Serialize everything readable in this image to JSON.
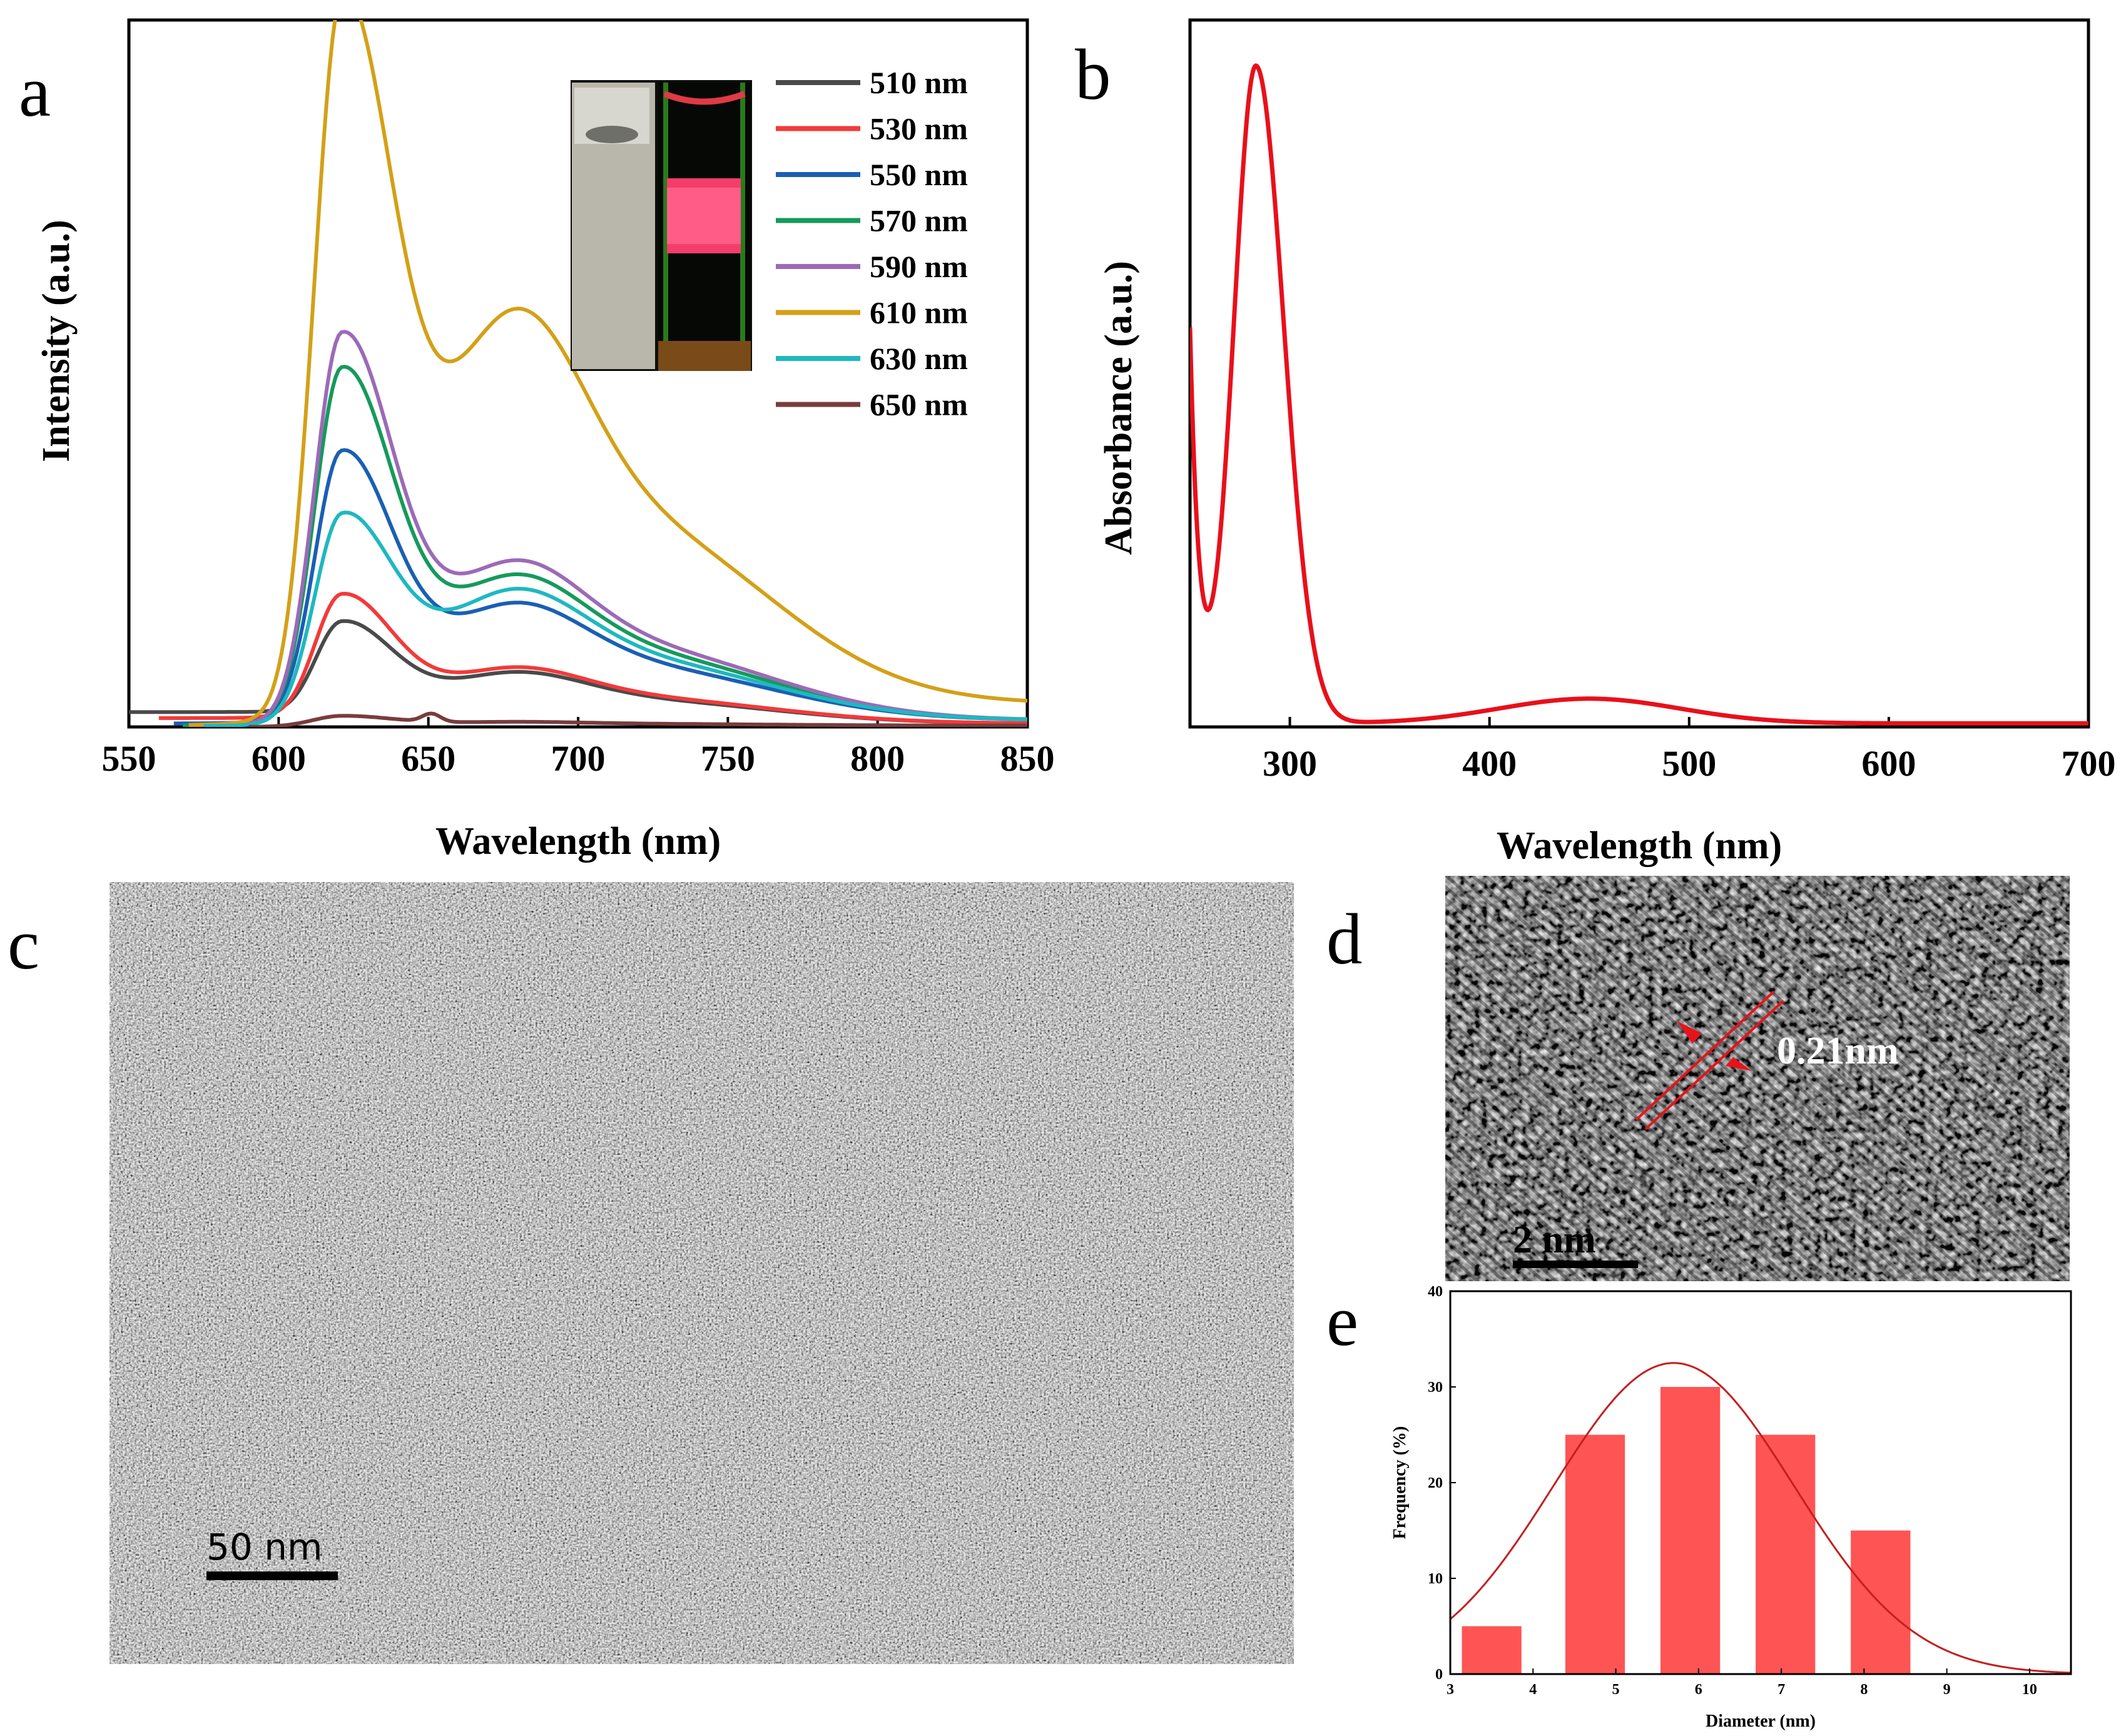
{
  "figure": {
    "background": "#ffffff"
  },
  "chart_data": [
    {
      "panel": "a",
      "type": "line",
      "xlabel": "Wavelength (nm)",
      "ylabel": "Intensity (a.u.)",
      "xlim": [
        550,
        850
      ],
      "ylim": [
        0,
        1.05
      ],
      "xticks": [
        550,
        600,
        650,
        700,
        750,
        800,
        850
      ],
      "inset_description": "cuvette photo daylight / excitation",
      "series": [
        {
          "name": "510 nm",
          "color": "#4a4a4a",
          "start": 550,
          "base": 0.022,
          "p1": 0.145,
          "p2": 0.055,
          "tail": 0.005
        },
        {
          "name": "530 nm",
          "color": "#f23a3a",
          "start": 560,
          "base": 0.013,
          "p1": 0.185,
          "p2": 0.06,
          "tail": 0.005
        },
        {
          "name": "550 nm",
          "color": "#1a5fb4",
          "start": 565,
          "base": 0.005,
          "p1": 0.385,
          "p2": 0.125,
          "tail": 0.01
        },
        {
          "name": "570 nm",
          "color": "#159a5c",
          "start": 568,
          "base": 0.002,
          "p1": 0.505,
          "p2": 0.155,
          "tail": 0.01
        },
        {
          "name": "590 nm",
          "color": "#9c6ab7",
          "start": 570,
          "base": 0.002,
          "p1": 0.555,
          "p2": 0.17,
          "tail": 0.01
        },
        {
          "name": "610 nm",
          "color": "#d4a017",
          "start": 570,
          "base": 0.002,
          "p1": 1.0,
          "p2": 0.42,
          "tail": 0.035
        },
        {
          "name": "630 nm",
          "color": "#1fb8c0",
          "start": 575,
          "base": 0.001,
          "p1": 0.29,
          "p2": 0.14,
          "tail": 0.01
        },
        {
          "name": "650 nm",
          "color": "#7a3c3c",
          "start": 590,
          "base": 0.0,
          "p1": 0.014,
          "p2": 0.004,
          "tail": 0.002
        }
      ]
    },
    {
      "panel": "b",
      "type": "line",
      "xlabel": "Wavelength (nm)",
      "ylabel": "Absorbance (a.u.)",
      "xlim": [
        250,
        700
      ],
      "ylim": [
        0,
        1.0
      ],
      "xticks": [
        300,
        400,
        500,
        600,
        700
      ],
      "series": [
        {
          "name": "absorbance",
          "color": "#e8101a",
          "peak1_x": 283,
          "peak1_y": 0.93,
          "dip_x": 256,
          "dip_y": 0.355,
          "peak2_x": 450,
          "peak2_y": 0.035
        }
      ]
    },
    {
      "panel": "e",
      "type": "bar",
      "xlabel": "Diameter (nm)",
      "ylabel": "Frequency (%)",
      "xlim": [
        3,
        10.5
      ],
      "ylim": [
        0,
        40
      ],
      "xticks": [
        3,
        4,
        5,
        6,
        7,
        8,
        9,
        10
      ],
      "yticks": [
        0,
        10,
        20,
        30,
        40
      ],
      "bar_color": "#ff5454",
      "fit_color": "#c41f1f",
      "bars": [
        {
          "center": 3.5,
          "value": 5
        },
        {
          "center": 4.75,
          "value": 25
        },
        {
          "center": 5.9,
          "value": 30
        },
        {
          "center": 7.05,
          "value": 25
        },
        {
          "center": 8.2,
          "value": 15
        }
      ],
      "fit": {
        "mean": 5.7,
        "sigma": 1.45,
        "amplitude": 32.5
      }
    }
  ],
  "panels": {
    "a": {
      "letter": "a"
    },
    "b": {
      "letter": "b"
    },
    "c": {
      "letter": "c",
      "scale_bar": "50 nm"
    },
    "d": {
      "letter": "d",
      "scale_bar": "2 nm",
      "lattice_spacing": "0.21nm"
    },
    "e": {
      "letter": "e"
    }
  }
}
